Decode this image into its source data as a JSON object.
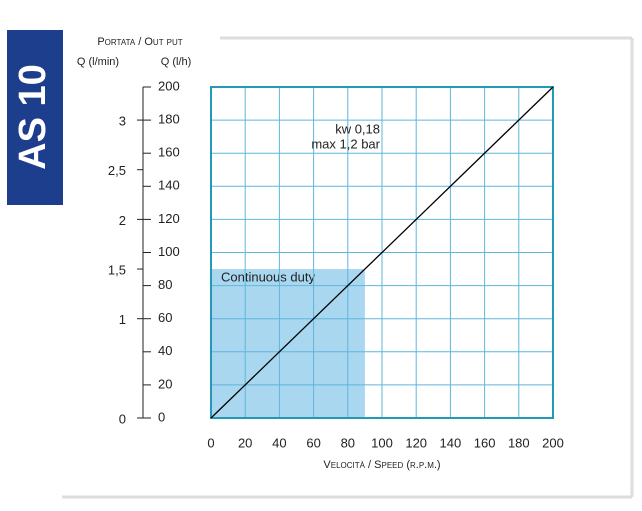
{
  "badge": "AS 10",
  "chart_data": {
    "type": "line",
    "title": "Portata / Out put",
    "y2label": "Q (l/min)",
    "ylabel": "Q (l/h)",
    "xlabel": "Velocità / Speed (r.p.m.)",
    "x": [
      0,
      200
    ],
    "series": [
      {
        "color": "#000000",
        "values": [
          0,
          200
        ]
      }
    ],
    "xlim": [
      0,
      200
    ],
    "xticks": [
      0,
      20,
      40,
      60,
      80,
      100,
      120,
      140,
      160,
      180,
      200
    ],
    "ylim": [
      0,
      200
    ],
    "yticks": [
      0,
      20,
      40,
      60,
      80,
      100,
      120,
      140,
      160,
      180,
      200
    ],
    "y2lim": [
      0,
      3.333
    ],
    "y2ticks": [
      0,
      1,
      {
        "value": 1.5,
        "label": "1,5"
      },
      2,
      {
        "value": 2.5,
        "label": "2,5"
      },
      3
    ],
    "grid": true,
    "regions": [
      {
        "label": "Continuous duty",
        "xlim": [
          0,
          90
        ],
        "ylim": [
          0,
          90
        ],
        "color": "#a9d7ef"
      }
    ],
    "annotations": [
      "kw 0,18",
      "max 1,2 bar"
    ]
  }
}
